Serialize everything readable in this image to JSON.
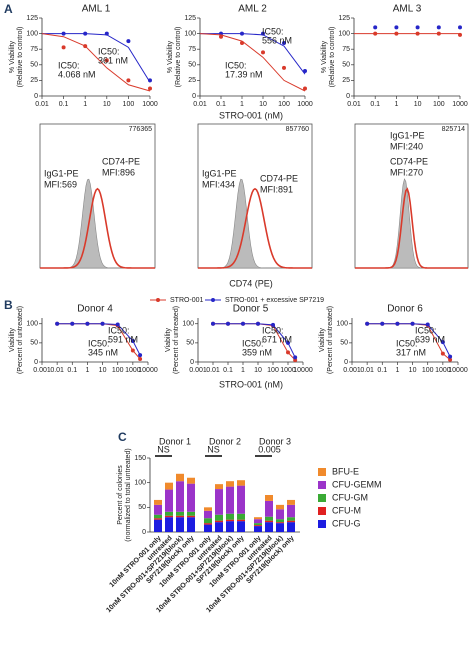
{
  "figure": {
    "panel_labels": [
      "A",
      "B",
      "C"
    ],
    "xlabel": "STRO-001 (nM)"
  },
  "flow": {
    "xlabel": "CD74 (PE)",
    "panels": [
      {
        "tag": "776365",
        "isotype": [
          "IgG1-PE",
          "MFI:569"
        ],
        "stain": [
          "CD74-PE",
          "MFI:896"
        ]
      },
      {
        "tag": "857760",
        "isotype": [
          "IgG1-PE",
          "MFI:434"
        ],
        "stain": [
          "CD74-PE",
          "MFI:891"
        ]
      },
      {
        "tag": "825714",
        "isotype": [
          "IgG1-PE",
          "MFI:240"
        ],
        "stain": [
          "CD74-PE",
          "MFI:270"
        ]
      }
    ]
  },
  "chart_data": [
    {
      "type": "line",
      "title": "AML 1",
      "xscale": "log",
      "xlim": [
        0.01,
        1000
      ],
      "xticks": [
        0.01,
        0.1,
        1,
        10,
        100,
        1000
      ],
      "ylim": [
        0,
        125
      ],
      "yticks": [
        0,
        25,
        50,
        75,
        100,
        125
      ],
      "ylabel": [
        "% Viability",
        "(Relative to control)"
      ],
      "series": [
        {
          "color": "#2626c8",
          "style": "points",
          "x": [
            0.1,
            1,
            10,
            100,
            1000
          ],
          "values": [
            100,
            100,
            100,
            88,
            25
          ]
        },
        {
          "color": "#2626c8",
          "style": "line",
          "x": [
            0.01,
            0.1,
            1,
            10,
            100,
            1000
          ],
          "values": [
            100,
            100,
            100,
            98,
            78,
            22
          ]
        },
        {
          "color": "#d93a2b",
          "style": "points",
          "x": [
            0.1,
            1,
            10,
            100,
            1000
          ],
          "values": [
            78,
            80,
            57,
            25,
            12
          ]
        },
        {
          "color": "#d93a2b",
          "style": "line",
          "x": [
            0.01,
            0.1,
            1,
            10,
            100,
            1000
          ],
          "values": [
            100,
            95,
            80,
            45,
            18,
            8
          ]
        }
      ],
      "annotations": [
        {
          "lines": [
            "IC50:",
            "361 nM"
          ],
          "color": "#2626c8"
        },
        {
          "lines": [
            "IC50:",
            "4.068 nM"
          ],
          "color": "#d93a2b"
        }
      ]
    },
    {
      "type": "line",
      "title": "AML 2",
      "xscale": "log",
      "xlim": [
        0.01,
        1000
      ],
      "xticks": [
        0.01,
        0.1,
        1,
        10,
        100,
        1000
      ],
      "ylim": [
        0,
        125
      ],
      "yticks": [
        0,
        25,
        50,
        75,
        100,
        125
      ],
      "ylabel": [
        "% Viability",
        "(Relative to control)"
      ],
      "series": [
        {
          "color": "#2626c8",
          "style": "points",
          "x": [
            0.1,
            1,
            10,
            100,
            1000
          ],
          "values": [
            100,
            100,
            100,
            85,
            40
          ]
        },
        {
          "color": "#2626c8",
          "style": "line",
          "x": [
            0.01,
            0.1,
            1,
            10,
            100,
            1000
          ],
          "values": [
            100,
            100,
            100,
            98,
            80,
            35
          ]
        },
        {
          "color": "#d93a2b",
          "style": "points",
          "x": [
            0.1,
            1,
            10,
            100,
            1000
          ],
          "values": [
            95,
            85,
            70,
            45,
            12
          ]
        },
        {
          "color": "#d93a2b",
          "style": "line",
          "x": [
            0.01,
            0.1,
            1,
            10,
            100,
            1000
          ],
          "values": [
            100,
            98,
            88,
            62,
            25,
            8
          ]
        }
      ],
      "annotations": [
        {
          "lines": [
            "IC50:",
            "556 nM"
          ],
          "color": "#2626c8"
        },
        {
          "lines": [
            "IC50:",
            "17.39 nM"
          ],
          "color": "#d93a2b"
        }
      ]
    },
    {
      "type": "line",
      "title": "AML 3",
      "xscale": "log",
      "xlim": [
        0.01,
        1000
      ],
      "xticks": [
        0.01,
        0.1,
        1,
        10,
        100,
        1000
      ],
      "ylim": [
        0,
        125
      ],
      "yticks": [
        0,
        25,
        50,
        75,
        100,
        125
      ],
      "ylabel": [
        "% Viability",
        "(Relative to control)"
      ],
      "series": [
        {
          "color": "#2626c8",
          "style": "points",
          "x": [
            0.1,
            1,
            10,
            100,
            1000
          ],
          "values": [
            110,
            110,
            110,
            110,
            110
          ]
        },
        {
          "color": "#d93a2b",
          "style": "points",
          "x": [
            0.1,
            1,
            10,
            100,
            1000
          ],
          "values": [
            100,
            100,
            100,
            100,
            98
          ]
        },
        {
          "color": "#d93a2b",
          "style": "line",
          "x": [
            0.01,
            0.1,
            1,
            10,
            100,
            1000
          ],
          "values": [
            100,
            100,
            100,
            100,
            100,
            100
          ]
        }
      ]
    },
    {
      "type": "line",
      "title": "Donor 4",
      "xscale": "log",
      "xlim": [
        0.001,
        10000
      ],
      "xticks": [
        0.001,
        0.01,
        0.1,
        1,
        10,
        100,
        1000,
        10000
      ],
      "ylim": [
        0,
        115
      ],
      "yticks": [
        0,
        50,
        100
      ],
      "ylabel": [
        "Viability",
        "(Percent of untreated)"
      ],
      "legend": "top",
      "series": [
        {
          "name": "STRO-001",
          "color": "#d93a2b",
          "style": "linepoints",
          "x": [
            0.01,
            0.1,
            1,
            10,
            100,
            1000,
            3000
          ],
          "values": [
            100,
            100,
            100,
            100,
            95,
            30,
            8
          ]
        },
        {
          "name": "STRO-001 + excessive SP7219",
          "color": "#2626c8",
          "style": "linepoints",
          "x": [
            0.01,
            0.1,
            1,
            10,
            100,
            1000,
            3000
          ],
          "values": [
            100,
            100,
            100,
            100,
            98,
            55,
            18
          ]
        }
      ],
      "annotations": [
        {
          "lines": [
            "IC50:",
            "591 nM"
          ],
          "color": "#2626c8"
        },
        {
          "lines": [
            "IC50:",
            "345 nM"
          ],
          "color": "#d93a2b"
        }
      ]
    },
    {
      "type": "line",
      "title": "Donor 5",
      "xscale": "log",
      "xlim": [
        0.001,
        10000
      ],
      "xticks": [
        0.001,
        0.01,
        0.1,
        1,
        10,
        100,
        1000,
        10000
      ],
      "ylim": [
        0,
        115
      ],
      "yticks": [
        0,
        50,
        100
      ],
      "ylabel": [
        "Viability",
        "(Percent of untreated)"
      ],
      "series": [
        {
          "color": "#d93a2b",
          "style": "linepoints",
          "x": [
            0.01,
            0.1,
            1,
            10,
            100,
            1000,
            3000
          ],
          "values": [
            100,
            100,
            100,
            100,
            95,
            25,
            5
          ]
        },
        {
          "color": "#2626c8",
          "style": "linepoints",
          "x": [
            0.01,
            0.1,
            1,
            10,
            100,
            1000,
            3000
          ],
          "values": [
            100,
            100,
            100,
            100,
            97,
            50,
            12
          ]
        }
      ],
      "annotations": [
        {
          "lines": [
            "IC50:",
            "671 nM"
          ],
          "color": "#2626c8"
        },
        {
          "lines": [
            "IC50:",
            "359 nM"
          ],
          "color": "#d93a2b"
        }
      ]
    },
    {
      "type": "line",
      "title": "Donor 6",
      "xscale": "log",
      "xlim": [
        0.001,
        10000
      ],
      "xticks": [
        0.001,
        0.01,
        0.1,
        1,
        10,
        100,
        1000,
        10000
      ],
      "ylim": [
        0,
        115
      ],
      "yticks": [
        0,
        50,
        100
      ],
      "ylabel": [
        "Viability",
        "(Percent of untreated)"
      ],
      "series": [
        {
          "color": "#d93a2b",
          "style": "linepoints",
          "x": [
            0.01,
            0.1,
            1,
            10,
            100,
            1000,
            3000
          ],
          "values": [
            100,
            100,
            100,
            100,
            96,
            22,
            6
          ]
        },
        {
          "color": "#2626c8",
          "style": "linepoints",
          "x": [
            0.01,
            0.1,
            1,
            10,
            100,
            1000,
            3000
          ],
          "values": [
            100,
            100,
            100,
            100,
            98,
            52,
            14
          ]
        }
      ],
      "annotations": [
        {
          "lines": [
            "IC50:",
            "639 nM"
          ],
          "color": "#2626c8"
        },
        {
          "lines": [
            "IC50:",
            "317 nM"
          ],
          "color": "#d93a2b"
        }
      ]
    },
    {
      "type": "bar",
      "stacked": true,
      "ylim": [
        0,
        150
      ],
      "yticks": [
        0,
        50,
        100,
        150
      ],
      "ylabel": [
        "Percent of colonies",
        "(normalized to total untreated)"
      ],
      "groups": [
        "Donor 1",
        "Donor 2",
        "Donor 3"
      ],
      "categories": [
        "10nM STRO-001 only",
        "untreated",
        "10nM STRO-001+SP7219(block)",
        "SP7219(block) only",
        "10nM STRO-001 only",
        "untreated",
        "10nM STRO-001+SP7219(block)",
        "SP7219(block) only",
        "10nM STRO-001 only",
        "untreated",
        "10nM STRO-001+SP7219(block)",
        "SP7219(block) only"
      ],
      "series": [
        {
          "name": "CFU-G",
          "color": "#1c1ce0",
          "values": [
            25,
            30,
            30,
            30,
            15,
            20,
            22,
            22,
            12,
            20,
            18,
            20
          ]
        },
        {
          "name": "CFU-M",
          "color": "#e02020",
          "values": [
            3,
            3,
            3,
            3,
            3,
            3,
            3,
            3,
            2,
            3,
            2,
            3
          ]
        },
        {
          "name": "CFU-GM",
          "color": "#3aaa35",
          "values": [
            7,
            8,
            8,
            8,
            10,
            12,
            12,
            12,
            4,
            8,
            6,
            7
          ]
        },
        {
          "name": "CFU-GEMM",
          "color": "#9b34c9",
          "values": [
            20,
            45,
            62,
            57,
            15,
            52,
            55,
            57,
            8,
            32,
            20,
            25
          ]
        },
        {
          "name": "BFU-E",
          "color": "#f08a2c",
          "values": [
            10,
            14,
            15,
            12,
            7,
            10,
            11,
            11,
            4,
            12,
            9,
            10
          ]
        }
      ],
      "annotations": [
        {
          "text": "NS"
        },
        {
          "text": "NS"
        },
        {
          "text": "0.005"
        }
      ]
    }
  ]
}
